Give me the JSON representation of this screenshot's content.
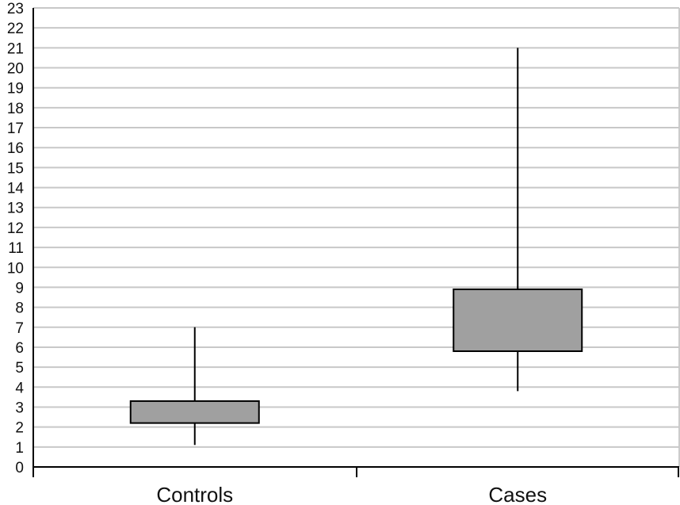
{
  "chart_data": {
    "type": "box",
    "title": "",
    "xlabel": "",
    "ylabel": "",
    "ylim": [
      0,
      23
    ],
    "y_ticks": [
      "0",
      "1",
      "2",
      "3",
      "4",
      "5",
      "6",
      "7",
      "8",
      "9",
      "10",
      "11",
      "12",
      "13",
      "14",
      "15",
      "16",
      "17",
      "18",
      "19",
      "20",
      "21",
      "22",
      "23"
    ],
    "grid": true,
    "categories": [
      "Controls",
      "Cases"
    ],
    "boxes": [
      {
        "category": "Controls",
        "whisker_low": 1.1,
        "q1": 2.2,
        "q3": 3.3,
        "whisker_high": 7.0
      },
      {
        "category": "Cases",
        "whisker_low": 3.8,
        "q1": 5.8,
        "q3": 8.9,
        "whisker_high": 21.0
      }
    ],
    "colors": {
      "box_fill": "#a0a0a0",
      "box_stroke": "#000000",
      "whisker": "#000000",
      "grid": "#c8c8c8",
      "axis": "#000000"
    }
  }
}
